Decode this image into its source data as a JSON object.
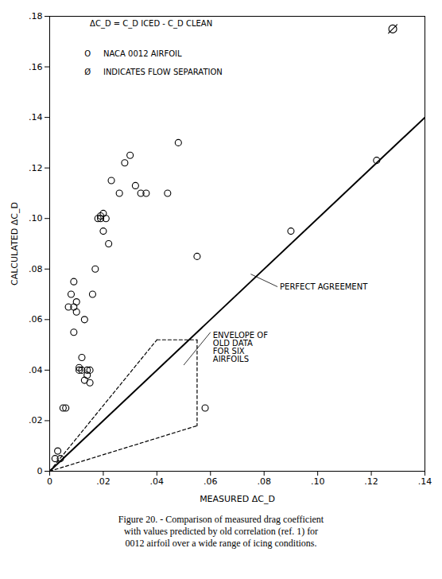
{
  "chart_data": {
    "type": "scatter",
    "xlabel": "MEASURED ΔC_D",
    "ylabel": "CALCULATED ΔC_D",
    "caption": "Figure 20.  - Comparison of measured drag coefficient\nwith values predicted by old correlation (ref. 1) for\n0012 airfoil over a wide range of icing conditions.",
    "xlim": [
      0,
      0.14
    ],
    "ylim": [
      0,
      0.18
    ],
    "xticks": [
      0,
      {
        "value": 0.02,
        "label": ".02"
      },
      {
        "value": 0.04,
        "label": ".04"
      },
      {
        "value": 0.06,
        "label": ".06"
      },
      {
        "value": 0.08,
        "label": ".08"
      },
      {
        "value": 0.1,
        "label": ".10"
      },
      {
        "value": 0.12,
        "label": ".12"
      },
      {
        "value": 0.14,
        "label": ".14"
      }
    ],
    "yticks": [
      0,
      {
        "value": 0.02,
        "label": ".02"
      },
      {
        "value": 0.04,
        "label": ".04"
      },
      {
        "value": 0.06,
        "label": ".06"
      },
      {
        "value": 0.08,
        "label": ".08"
      },
      {
        "value": 0.1,
        "label": ".10"
      },
      {
        "value": 0.12,
        "label": ".12"
      },
      {
        "value": 0.14,
        "label": ".14"
      },
      {
        "value": 0.16,
        "label": ".16"
      },
      {
        "value": 0.18,
        "label": ".18"
      }
    ],
    "series": [
      {
        "type": "scatter",
        "marker": "circle",
        "x": [
          0.002,
          0.003,
          0.004,
          0.005,
          0.006,
          0.007,
          0.008,
          0.009,
          0.009,
          0.009,
          0.01,
          0.01,
          0.011,
          0.011,
          0.012,
          0.012,
          0.013,
          0.013,
          0.014,
          0.014,
          0.015,
          0.015,
          0.016,
          0.017,
          0.018,
          0.019,
          0.019,
          0.02,
          0.02,
          0.021,
          0.022,
          0.023,
          0.026,
          0.028,
          0.03,
          0.032,
          0.034,
          0.036,
          0.044,
          0.048,
          0.055,
          0.058,
          0.09,
          0.122
        ],
        "values": [
          0.005,
          0.008,
          0.005,
          0.025,
          0.025,
          0.065,
          0.07,
          0.065,
          0.075,
          0.055,
          0.063,
          0.067,
          0.04,
          0.041,
          0.045,
          0.04,
          0.06,
          0.036,
          0.04,
          0.038,
          0.035,
          0.04,
          0.07,
          0.08,
          0.1,
          0.1,
          0.101,
          0.102,
          0.095,
          0.1,
          0.09,
          0.115,
          0.11,
          0.122,
          0.125,
          0.113,
          0.11,
          0.11,
          0.11,
          0.13,
          0.085,
          0.025,
          0.095,
          0.123
        ]
      },
      {
        "type": "scatter",
        "marker": "slashed circle",
        "x": [
          0.128
        ],
        "values": [
          0.175
        ]
      },
      {
        "type": "line",
        "line_style": "solid",
        "x": [
          0,
          0.14
        ],
        "values": [
          0,
          0.14
        ]
      },
      {
        "type": "line",
        "line_style": "dashed",
        "x": [
          0.0,
          0.04
        ],
        "values": [
          0.0,
          0.052
        ]
      },
      {
        "type": "line",
        "line_style": "dashed",
        "x": [
          0.0,
          0.055
        ],
        "values": [
          0.0,
          0.018
        ]
      },
      {
        "type": "line",
        "line_style": "dashed",
        "x": [
          0.04,
          0.055
        ],
        "values": [
          0.052,
          0.052
        ]
      },
      {
        "type": "line",
        "line_style": "dashed",
        "x": [
          0.055,
          0.055
        ],
        "values": [
          0.052,
          0.018
        ]
      }
    ],
    "annotations": [
      {
        "text": "PERFECT AGREEMENT",
        "xy": [
          0.075,
          0.078
        ],
        "xytext": [
          0.085,
          0.073
        ]
      },
      {
        "text": "ENVELOPE OF\nOLD DATA\nFOR SIX\nAIRFOILS",
        "xy": [
          0.05,
          0.042
        ],
        "xytext": [
          0.06,
          0.055
        ]
      },
      {
        "text": "ΔC_D = C_D ICED - C_D CLEAN",
        "xy": [
          0.015,
          0.177
        ]
      },
      {
        "text": "O",
        "xy": [
          0.013,
          0.165
        ]
      },
      {
        "text": "NACA 0012 AIRFOIL",
        "xy": [
          0.02,
          0.165
        ]
      },
      {
        "text": "Ø",
        "xy": [
          0.013,
          0.158
        ]
      },
      {
        "text": "INDICATES FLOW SEPARATION",
        "xy": [
          0.02,
          0.158
        ]
      }
    ]
  }
}
